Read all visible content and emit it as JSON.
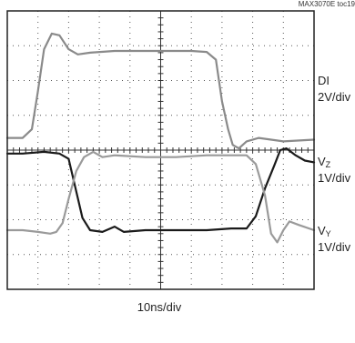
{
  "figure_ref": "MAX3070E toc19",
  "xlabel": "10ns/div",
  "channels": [
    {
      "name": "DI",
      "scale": "2V/div"
    },
    {
      "name_main": "V",
      "name_sub": "Z",
      "scale": "1V/div"
    },
    {
      "name_main": "V",
      "name_sub": "Y",
      "scale": "1V/div"
    }
  ],
  "colors": {
    "di": "#8a8a8a",
    "vz": "#1a1a1a",
    "vy": "#9a9a9a",
    "grid": "#555555",
    "frame": "#222222"
  },
  "chart_data": {
    "type": "line",
    "xlabel": "10ns/div",
    "ylabel": "",
    "x_divisions": 10,
    "y_divisions": 8,
    "xlim": [
      0,
      10
    ],
    "ylim": [
      0,
      8
    ],
    "grid": true,
    "series": [
      {
        "name": "DI",
        "points": [
          [
            0,
            4.35
          ],
          [
            0.25,
            4.35
          ],
          [
            0.5,
            4.35
          ],
          [
            0.8,
            4.6
          ],
          [
            1.0,
            5.7
          ],
          [
            1.2,
            6.9
          ],
          [
            1.45,
            7.35
          ],
          [
            1.7,
            7.3
          ],
          [
            2.0,
            6.9
          ],
          [
            2.3,
            6.75
          ],
          [
            2.7,
            6.8
          ],
          [
            3.5,
            6.85
          ],
          [
            5,
            6.85
          ],
          [
            6,
            6.85
          ],
          [
            6.5,
            6.82
          ],
          [
            6.8,
            6.6
          ],
          [
            7.0,
            5.4
          ],
          [
            7.2,
            4.6
          ],
          [
            7.35,
            4.15
          ],
          [
            7.55,
            4.05
          ],
          [
            7.8,
            4.25
          ],
          [
            8.2,
            4.35
          ],
          [
            8.6,
            4.3
          ],
          [
            9,
            4.25
          ],
          [
            10,
            4.3
          ]
        ]
      },
      {
        "name": "VZ",
        "points": [
          [
            0,
            3.9
          ],
          [
            0.5,
            3.9
          ],
          [
            1.2,
            3.95
          ],
          [
            1.7,
            3.9
          ],
          [
            2.0,
            3.75
          ],
          [
            2.2,
            3.0
          ],
          [
            2.45,
            2.05
          ],
          [
            2.7,
            1.7
          ],
          [
            3.1,
            1.65
          ],
          [
            3.5,
            1.8
          ],
          [
            3.8,
            1.65
          ],
          [
            4.5,
            1.7
          ],
          [
            5.5,
            1.7
          ],
          [
            6.5,
            1.7
          ],
          [
            7.3,
            1.75
          ],
          [
            7.8,
            1.75
          ],
          [
            8.1,
            2.1
          ],
          [
            8.4,
            2.9
          ],
          [
            8.7,
            3.55
          ],
          [
            8.9,
            4.0
          ],
          [
            9.1,
            4.05
          ],
          [
            9.4,
            3.85
          ],
          [
            9.7,
            3.7
          ],
          [
            10,
            3.65
          ]
        ]
      },
      {
        "name": "VY",
        "points": [
          [
            0,
            1.7
          ],
          [
            0.5,
            1.7
          ],
          [
            1.0,
            1.65
          ],
          [
            1.4,
            1.6
          ],
          [
            1.6,
            1.65
          ],
          [
            1.8,
            1.9
          ],
          [
            2.0,
            2.6
          ],
          [
            2.25,
            3.4
          ],
          [
            2.5,
            3.8
          ],
          [
            2.8,
            3.95
          ],
          [
            3.1,
            3.8
          ],
          [
            3.5,
            3.85
          ],
          [
            4.5,
            3.8
          ],
          [
            5.5,
            3.8
          ],
          [
            6.5,
            3.85
          ],
          [
            7.3,
            3.85
          ],
          [
            7.8,
            3.85
          ],
          [
            8.1,
            3.6
          ],
          [
            8.4,
            2.7
          ],
          [
            8.6,
            1.6
          ],
          [
            8.8,
            1.35
          ],
          [
            9.0,
            1.7
          ],
          [
            9.2,
            1.95
          ],
          [
            9.5,
            1.85
          ],
          [
            10,
            1.7
          ]
        ]
      }
    ]
  }
}
